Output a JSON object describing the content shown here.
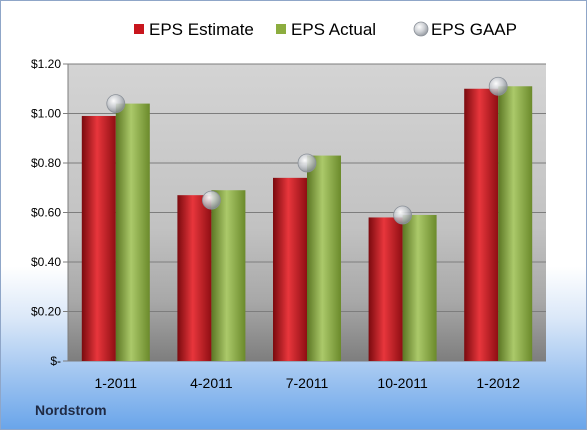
{
  "company": "Nordstrom",
  "chart_data": {
    "type": "bar",
    "categories": [
      "1-2011",
      "4-2011",
      "7-2011",
      "10-2011",
      "1-2012"
    ],
    "series": [
      {
        "name": "EPS Estimate",
        "type": "bar",
        "color": "#c8161d",
        "values": [
          0.99,
          0.67,
          0.74,
          0.58,
          1.1
        ]
      },
      {
        "name": "EPS Actual",
        "type": "bar",
        "color": "#8cad3f",
        "values": [
          1.04,
          0.69,
          0.83,
          0.59,
          1.11
        ]
      },
      {
        "name": "EPS GAAP",
        "type": "marker",
        "color": "#a9aeb4",
        "values": [
          1.04,
          0.65,
          0.8,
          0.59,
          1.11
        ]
      }
    ],
    "ylim": [
      0,
      1.2
    ],
    "yticks": [
      {
        "value": 1.2,
        "label": "$1.20"
      },
      {
        "value": 1.0,
        "label": "$1.00"
      },
      {
        "value": 0.8,
        "label": "$0.80"
      },
      {
        "value": 0.6,
        "label": "$0.60"
      },
      {
        "value": 0.4,
        "label": "$0.40"
      },
      {
        "value": 0.2,
        "label": "$0.20"
      },
      {
        "value": 0,
        "label": "$-"
      }
    ],
    "grid": true,
    "legend_position": "top",
    "title": "",
    "xlabel": "",
    "ylabel": ""
  }
}
